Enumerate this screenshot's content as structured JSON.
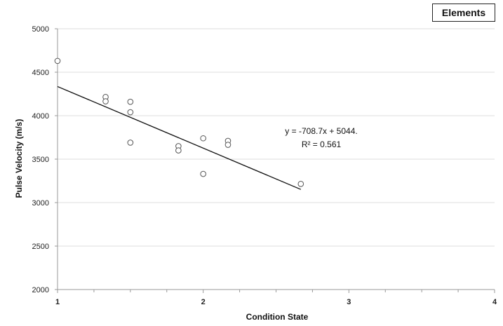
{
  "chart_data": {
    "type": "scatter",
    "xlabel": "Condition State",
    "ylabel": "Pulse Velocity (m/s)",
    "xlim": [
      1,
      4
    ],
    "ylim": [
      2000,
      5000
    ],
    "x_ticks": [
      "1",
      "2",
      "3",
      "4"
    ],
    "y_ticks": [
      "2000",
      "2500",
      "3000",
      "3500",
      "4000",
      "4500",
      "5000"
    ],
    "grid": "horizontal",
    "legend": {
      "label": "Elements",
      "placement": "top-right"
    },
    "series": [
      {
        "x": [
          1.0,
          1.33,
          1.33,
          1.5,
          1.5,
          1.5,
          1.83,
          1.83,
          2.0,
          2.0,
          2.17,
          2.17,
          2.67
        ],
        "y": [
          4630,
          4215,
          4165,
          4160,
          4040,
          3690,
          3650,
          3600,
          3740,
          3330,
          3710,
          3665,
          3215
        ]
      }
    ],
    "trendline": {
      "slope": -708.7,
      "intercept": 5044,
      "x_range": [
        1.0,
        2.67
      ],
      "equation": "y = -708.7x + 5044.",
      "r_squared": "R² = 0.561"
    }
  }
}
